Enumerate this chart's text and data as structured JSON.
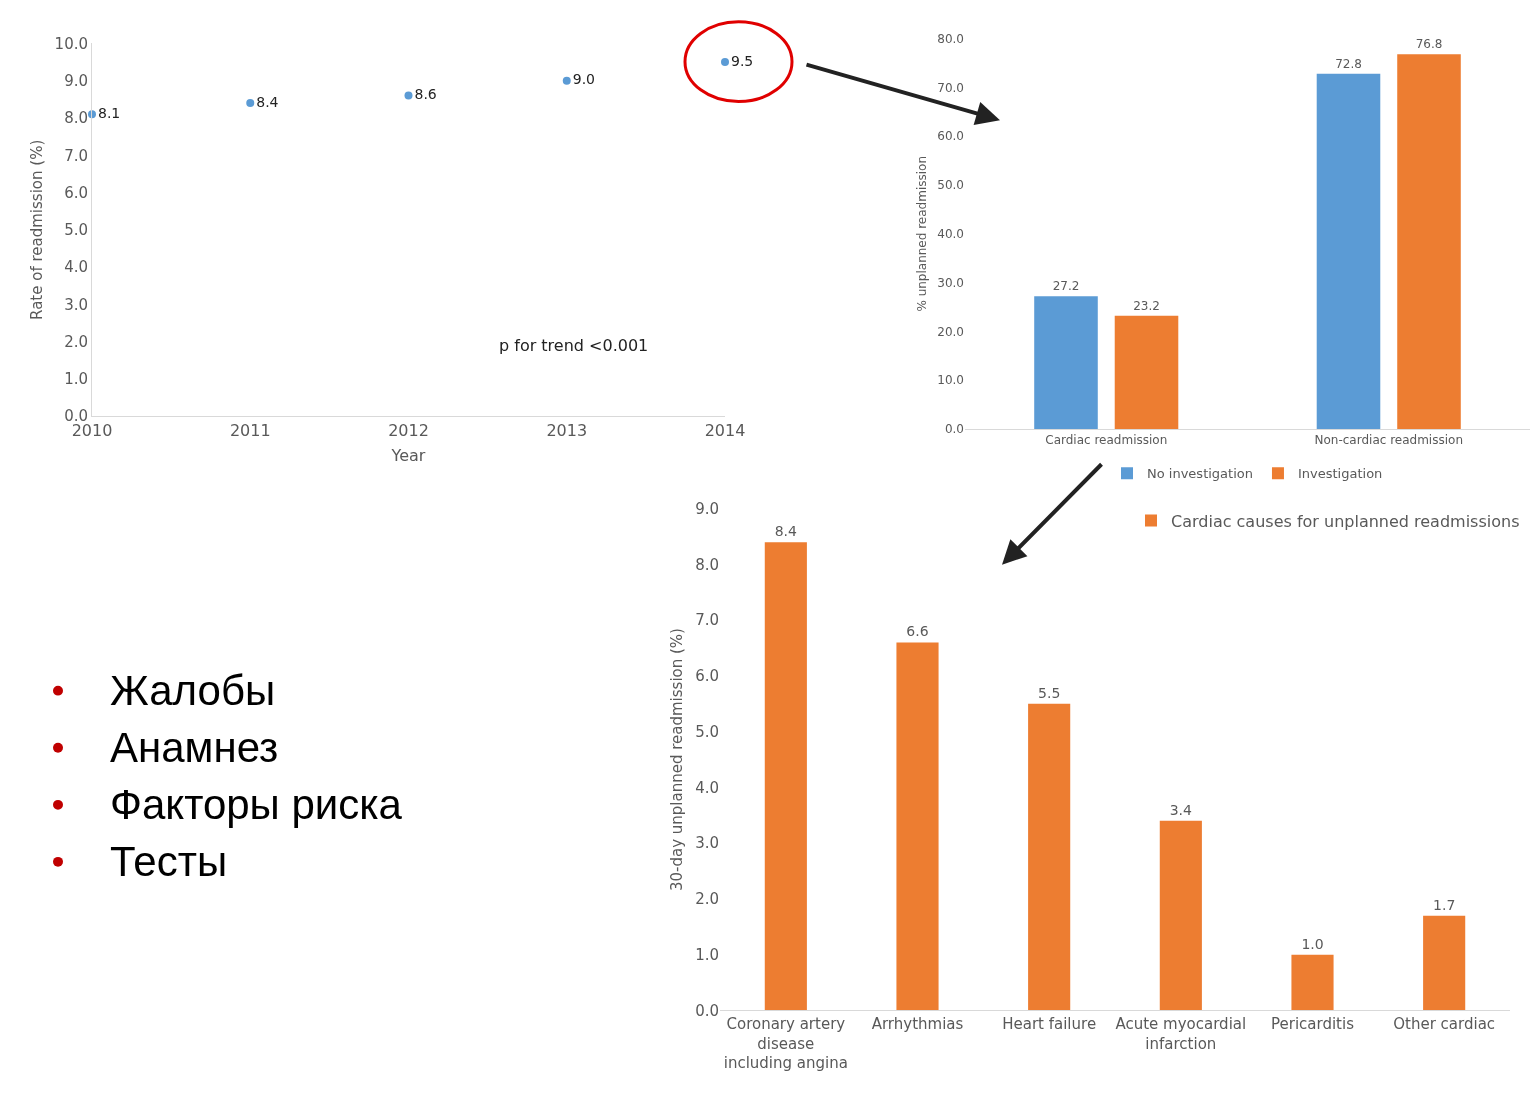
{
  "chart_data": [
    {
      "type": "scatter",
      "x": [
        2010,
        2011,
        2012,
        2013,
        2014
      ],
      "values": [
        8.1,
        8.4,
        8.6,
        9.0,
        9.5
      ],
      "color": "#5b9bd5",
      "marker": "circle",
      "value_labels": [
        "8.1",
        "8.4",
        "8.6",
        "9.0",
        "9.5"
      ],
      "xlabel": "Year",
      "ylabel": "Rate of readmission (%)",
      "xlim": [
        2010,
        2014
      ],
      "xticks": [
        2010,
        2011,
        2012,
        2013,
        2014
      ],
      "ylim": [
        0,
        10
      ],
      "yticks": [
        {
          "value": 0,
          "label": "0.0"
        },
        {
          "value": 1,
          "label": "1.0"
        },
        {
          "value": 2,
          "label": "2.0"
        },
        {
          "value": 3,
          "label": "3.0"
        },
        {
          "value": 4,
          "label": "4.0"
        },
        {
          "value": 5,
          "label": "5.0"
        },
        {
          "value": 6,
          "label": "6.0"
        },
        {
          "value": 7,
          "label": "7.0"
        },
        {
          "value": 8,
          "label": "8.0"
        },
        {
          "value": 9,
          "label": "9.0"
        },
        {
          "value": 10,
          "label": "10.0"
        }
      ],
      "annotations": [
        "p for trend <0.001"
      ],
      "grid": false,
      "legend": false
    },
    {
      "type": "bar",
      "categories": [
        "Cardiac readmission",
        "Non-cardiac readmission"
      ],
      "series": [
        {
          "name": "No investigation",
          "color": "#5b9bd5",
          "values": [
            27.2,
            72.8
          ],
          "value_labels": [
            "27.2",
            "72.8"
          ]
        },
        {
          "name": "Investigation",
          "color": "#ed7d31",
          "values": [
            23.2,
            76.8
          ],
          "value_labels": [
            "23.2",
            "76.8"
          ]
        }
      ],
      "ylabel": "% unplanned readmission",
      "ylim": [
        0,
        80
      ],
      "yticks": [
        {
          "value": 0,
          "label": "0.0"
        },
        {
          "value": 10,
          "label": "10.0"
        },
        {
          "value": 20,
          "label": "20.0"
        },
        {
          "value": 30,
          "label": "30.0"
        },
        {
          "value": 40,
          "label": "40.0"
        },
        {
          "value": 50,
          "label": "50.0"
        },
        {
          "value": 60,
          "label": "60.0"
        },
        {
          "value": 70,
          "label": "70.0"
        },
        {
          "value": 80,
          "label": "80.0"
        }
      ],
      "grid": false,
      "legend": "bottom"
    },
    {
      "type": "bar",
      "categories": [
        "Coronary artery disease including angina",
        "Arrhythmias",
        "Heart failure",
        "Acute myocardial infarction",
        "Pericarditis",
        "Other cardiac"
      ],
      "series": [
        {
          "name": "Cardiac causes for unplanned readmissions",
          "color": "#ed7d31",
          "values": [
            8.4,
            6.6,
            5.5,
            3.4,
            1.0,
            1.7
          ],
          "value_labels": [
            "8.4",
            "6.6",
            "5.5",
            "3.4",
            "1.0",
            "1.7"
          ]
        }
      ],
      "ylabel": "30-day unplanned readmission (%)",
      "ylim": [
        0,
        9
      ],
      "yticks": [
        {
          "value": 0,
          "label": "0.0"
        },
        {
          "value": 1,
          "label": "1.0"
        },
        {
          "value": 2,
          "label": "2.0"
        },
        {
          "value": 3,
          "label": "3.0"
        },
        {
          "value": 4,
          "label": "4.0"
        },
        {
          "value": 5,
          "label": "5.0"
        },
        {
          "value": 6,
          "label": "6.0"
        },
        {
          "value": 7,
          "label": "7.0"
        },
        {
          "value": 8,
          "label": "8.0"
        },
        {
          "value": 9,
          "label": "9.0"
        }
      ],
      "grid": false,
      "legend": "top right"
    },
    {
      "type": "other",
      "annotations": [
        "Жалобы",
        "Анамнез",
        "Факторы риска",
        "Тесты"
      ]
    }
  ]
}
